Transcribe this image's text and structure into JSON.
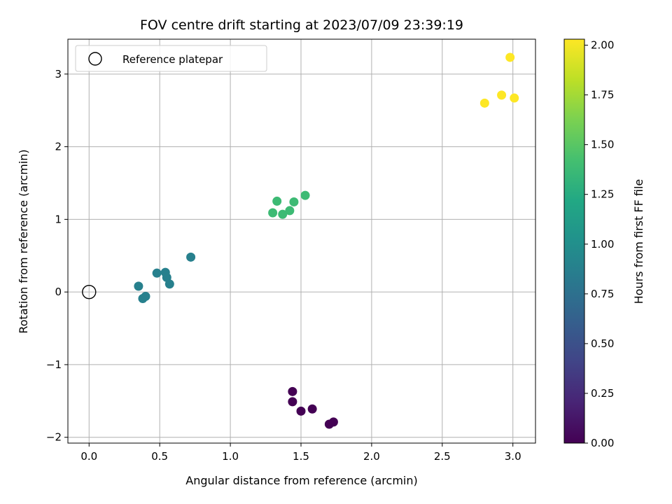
{
  "chart_data": {
    "type": "scatter",
    "title": "FOV centre drift starting at 2023/07/09 23:39:19",
    "xlabel": "Angular distance from reference (arcmin)",
    "ylabel": "Rotation from reference (arcmin)",
    "xlim": [
      -0.15,
      3.16
    ],
    "ylim": [
      -2.08,
      3.48
    ],
    "xticks": [
      0.0,
      0.5,
      1.0,
      1.5,
      2.0,
      2.5,
      3.0
    ],
    "xtick_labels": [
      "0.0",
      "0.5",
      "1.0",
      "1.5",
      "2.0",
      "2.5",
      "3.0"
    ],
    "yticks": [
      -2,
      -1,
      0,
      1,
      2,
      3
    ],
    "ytick_labels": [
      "−2",
      "−1",
      "0",
      "1",
      "2",
      "3"
    ],
    "grid": true,
    "legend": {
      "placement": "upper-left",
      "entries": [
        "Reference platepar"
      ]
    },
    "reference_point": {
      "x": 0.0,
      "y": 0.0,
      "label": "Reference platepar"
    },
    "colormap": "viridis",
    "colorbar": {
      "label": "Hours from first FF file",
      "range": [
        0.0,
        2.03
      ],
      "ticks": [
        0.0,
        0.25,
        0.5,
        0.75,
        1.0,
        1.25,
        1.5,
        1.75,
        2.0
      ],
      "tick_labels": [
        "0.00",
        "0.25",
        "0.50",
        "0.75",
        "1.00",
        "1.25",
        "1.50",
        "1.75",
        "2.00"
      ]
    },
    "points": [
      {
        "x": 1.44,
        "y": -1.37,
        "c": 0.0
      },
      {
        "x": 1.44,
        "y": -1.51,
        "c": 0.0
      },
      {
        "x": 1.5,
        "y": -1.64,
        "c": 0.0
      },
      {
        "x": 1.58,
        "y": -1.61,
        "c": 0.0
      },
      {
        "x": 1.7,
        "y": -1.82,
        "c": 0.0
      },
      {
        "x": 1.73,
        "y": -1.79,
        "c": 0.0
      },
      {
        "x": 0.35,
        "y": 0.08,
        "c": 0.88
      },
      {
        "x": 0.38,
        "y": -0.09,
        "c": 0.88
      },
      {
        "x": 0.4,
        "y": -0.06,
        "c": 0.88
      },
      {
        "x": 0.48,
        "y": 0.26,
        "c": 0.88
      },
      {
        "x": 0.54,
        "y": 0.27,
        "c": 0.88
      },
      {
        "x": 0.55,
        "y": 0.2,
        "c": 0.88
      },
      {
        "x": 0.57,
        "y": 0.11,
        "c": 0.88
      },
      {
        "x": 0.72,
        "y": 0.48,
        "c": 0.88
      },
      {
        "x": 1.3,
        "y": 1.09,
        "c": 1.38
      },
      {
        "x": 1.33,
        "y": 1.25,
        "c": 1.38
      },
      {
        "x": 1.37,
        "y": 1.07,
        "c": 1.38
      },
      {
        "x": 1.42,
        "y": 1.12,
        "c": 1.38
      },
      {
        "x": 1.45,
        "y": 1.24,
        "c": 1.38
      },
      {
        "x": 1.53,
        "y": 1.33,
        "c": 1.38
      },
      {
        "x": 2.8,
        "y": 2.6,
        "c": 2.03
      },
      {
        "x": 2.92,
        "y": 2.71,
        "c": 2.03
      },
      {
        "x": 2.98,
        "y": 3.23,
        "c": 2.03
      },
      {
        "x": 3.01,
        "y": 2.67,
        "c": 2.03
      }
    ]
  }
}
